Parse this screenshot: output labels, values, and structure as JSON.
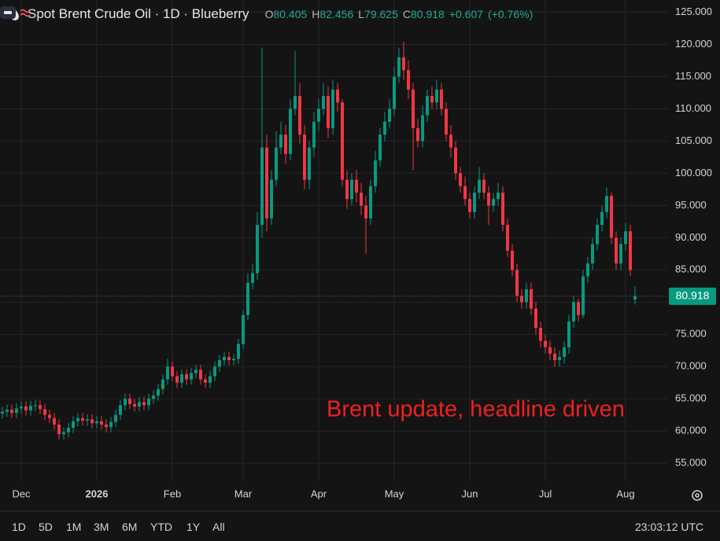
{
  "header": {
    "title": "Spot Brent Crude Oil · 1D · Blueberry",
    "ohlc_labels": [
      "O",
      "H",
      "L",
      "C"
    ],
    "change": {
      "value": 0.607,
      "label": "+0.607"
    },
    "change_pct": {
      "value": 0.76,
      "label": "(+0.76%)"
    }
  },
  "chart_data": {
    "type": "candlestick",
    "annotation": "Brent update, headline driven",
    "grid": true,
    "up_color": "#089981",
    "down_color": "#f23645",
    "categories": [
      null,
      null,
      null,
      null,
      "Dec",
      null,
      null,
      null,
      null,
      null,
      null,
      null,
      null,
      null,
      null,
      null,
      null,
      null,
      null,
      null,
      "2026",
      null,
      null,
      null,
      null,
      null,
      null,
      null,
      null,
      null,
      null,
      null,
      null,
      null,
      null,
      null,
      "Feb",
      null,
      null,
      null,
      null,
      null,
      null,
      null,
      null,
      null,
      null,
      null,
      null,
      null,
      null,
      "Mar",
      null,
      null,
      null,
      null,
      null,
      null,
      null,
      null,
      null,
      null,
      null,
      null,
      null,
      null,
      null,
      "Apr",
      null,
      null,
      null,
      null,
      null,
      null,
      null,
      null,
      null,
      null,
      null,
      null,
      null,
      null,
      null,
      "May",
      null,
      null,
      null,
      null,
      null,
      null,
      null,
      null,
      null,
      null,
      null,
      null,
      null,
      null,
      null,
      "Jun",
      null,
      null,
      null,
      null,
      null,
      null,
      null,
      null,
      null,
      null,
      null,
      null,
      null,
      null,
      null,
      "Jul",
      null,
      null,
      null,
      null,
      null,
      null,
      null,
      null,
      null,
      null,
      null,
      null,
      null,
      null,
      null,
      null,
      "Aug",
      null,
      null
    ],
    "open": [
      62.7,
      63.0,
      63.3,
      62.8,
      63.5,
      63.8,
      63.2,
      63.9,
      64.0,
      63.4,
      62.5,
      62.0,
      61.0,
      59.5,
      59.8,
      60.5,
      61.5,
      62.0,
      61.6,
      61.8,
      61.2,
      61.5,
      61.0,
      60.6,
      61.4,
      62.5,
      64.0,
      65.0,
      64.2,
      63.8,
      64.5,
      64.0,
      65.0,
      65.5,
      66.5,
      68.0,
      70.0,
      68.5,
      67.5,
      68.8,
      68.0,
      69.0,
      69.5,
      68.0,
      67.5,
      68.5,
      70.0,
      71.0,
      71.5,
      71.0,
      71.2,
      73.5,
      78.0,
      83.0,
      84.5,
      92.0,
      104.0,
      93.0,
      99.0,
      104.0,
      106,
      103,
      110,
      112,
      106,
      99,
      104,
      108,
      110,
      112,
      107,
      113,
      111,
      99,
      96,
      99,
      97,
      95,
      93,
      98,
      102,
      106,
      108,
      110,
      115,
      118,
      116,
      113,
      107,
      105,
      109,
      112,
      111,
      113,
      110,
      106,
      104,
      100,
      98,
      96,
      94,
      97,
      99,
      97,
      95,
      96,
      97,
      92,
      88,
      85,
      81,
      80,
      82,
      79,
      76,
      74,
      73,
      72,
      71,
      71.5,
      73,
      77,
      80,
      78,
      84,
      86,
      89,
      92,
      94,
      96.5,
      90,
      86,
      89,
      91,
      80.405
    ],
    "high": [
      63.8,
      64.1,
      64.1,
      64.3,
      64.6,
      64.6,
      64.7,
      64.8,
      64.8,
      64.2,
      63.3,
      62.8,
      61.8,
      60.6,
      61.3,
      62.3,
      62.8,
      62.8,
      62.6,
      62.6,
      62.3,
      62.3,
      61.8,
      62.2,
      63.3,
      64.8,
      65.8,
      65.8,
      65.0,
      65.3,
      65.3,
      65.8,
      66.3,
      67.3,
      68.8,
      71.2,
      70.8,
      69.3,
      69.6,
      69.6,
      69.8,
      70.3,
      70.3,
      68.8,
      69.3,
      70.8,
      71.8,
      72.3,
      72.3,
      72.0,
      74.3,
      78.8,
      84.5,
      86.0,
      94.0,
      119.5,
      106.0,
      100.5,
      106.5,
      108.0,
      107.5,
      111.5,
      119.0,
      114.0,
      107.5,
      105.0,
      109.5,
      111.5,
      114.0,
      113.5,
      114.5,
      114.0,
      111.5,
      100.5,
      100.0,
      100.5,
      98.5,
      96.5,
      99.0,
      103.5,
      107.0,
      109.5,
      111.5,
      116.5,
      119.5,
      120.4,
      117.5,
      114.0,
      108.5,
      110.5,
      113.0,
      113.5,
      114.5,
      114.0,
      111.0,
      107.5,
      105.0,
      101.0,
      99.5,
      97.0,
      98.0,
      101.0,
      100.0,
      98.0,
      97.0,
      98.5,
      98.0,
      93.0,
      89.0,
      86.0,
      82.0,
      83.0,
      83.0,
      80.0,
      77.0,
      75.0,
      74.0,
      73.0,
      72.5,
      74.0,
      78.0,
      81.0,
      80.5,
      85.0,
      87.0,
      90.0,
      93.0,
      95.0,
      97.8,
      97.0,
      91.0,
      90.0,
      92.3,
      92.0,
      82.456
    ],
    "low": [
      61.9,
      62.2,
      62.0,
      62.0,
      62.7,
      62.4,
      62.4,
      63.1,
      62.6,
      61.7,
      61.2,
      60.2,
      58.7,
      58.7,
      59.0,
      59.7,
      60.7,
      60.8,
      60.8,
      60.4,
      60.4,
      60.2,
      59.8,
      59.8,
      60.6,
      61.7,
      63.2,
      63.4,
      63.0,
      63.0,
      63.2,
      63.2,
      64.2,
      64.7,
      65.7,
      67.2,
      67.7,
      66.7,
      66.7,
      67.2,
      67.2,
      68.2,
      67.2,
      66.7,
      66.7,
      67.7,
      69.2,
      70.2,
      70.2,
      70.2,
      70.4,
      72.7,
      77.2,
      82.0,
      83.5,
      90.0,
      91.0,
      92.0,
      98.0,
      103.0,
      101.5,
      102.0,
      109.0,
      104.5,
      97.5,
      97.5,
      102.5,
      106.5,
      109.0,
      105.5,
      106.0,
      109.5,
      98.0,
      94.5,
      95.0,
      95.5,
      93.5,
      87.5,
      92.0,
      97.0,
      101.0,
      105.0,
      107.0,
      109.0,
      114.0,
      114.5,
      111.5,
      100.5,
      104.0,
      104.0,
      108.0,
      110.0,
      110.0,
      109.0,
      105.0,
      102.5,
      99.0,
      97.0,
      95.0,
      93.0,
      93.0,
      96.0,
      96.0,
      92.0,
      94.0,
      95.0,
      91.0,
      87.0,
      84.0,
      80.0,
      79.0,
      79.0,
      78.0,
      75.0,
      73.0,
      72.0,
      71.0,
      70.0,
      70.0,
      70.5,
      72.0,
      76.0,
      77.0,
      77.5,
      83.0,
      85.0,
      88.0,
      91.0,
      93.0,
      89.0,
      85.0,
      85.0,
      88.0,
      84.0,
      79.625
    ],
    "close": [
      63.0,
      63.3,
      62.8,
      63.5,
      63.8,
      63.2,
      63.9,
      64.0,
      63.4,
      62.5,
      62.0,
      61.0,
      59.5,
      59.8,
      60.5,
      61.5,
      62.0,
      61.6,
      61.8,
      61.2,
      61.5,
      61.0,
      60.6,
      61.4,
      62.5,
      64.0,
      65.0,
      64.2,
      63.8,
      64.5,
      64.0,
      65.0,
      65.5,
      66.5,
      68.0,
      70.0,
      68.5,
      67.5,
      68.8,
      68.0,
      69.0,
      69.5,
      68.0,
      67.5,
      68.5,
      70.0,
      71.0,
      71.5,
      71.0,
      71.2,
      73.5,
      78.0,
      83.0,
      84.5,
      92.0,
      104.0,
      93.0,
      99.0,
      104.0,
      106.0,
      103,
      110,
      112,
      106,
      99,
      104,
      108,
      110,
      112,
      107,
      113,
      111,
      99,
      96,
      99,
      97,
      95,
      93,
      98,
      102,
      106,
      108,
      110,
      115,
      118,
      116,
      113,
      107,
      105,
      109,
      112,
      111,
      113,
      110,
      106,
      104,
      100,
      98,
      96,
      94,
      97,
      99,
      97,
      95,
      96,
      97,
      92,
      88,
      85,
      81,
      80,
      82,
      79,
      76,
      74,
      73,
      72,
      71,
      71.5,
      73,
      77,
      80,
      78,
      84,
      86,
      89,
      92,
      94,
      96.5,
      90,
      86,
      89,
      91,
      85,
      80.918
    ],
    "ylim": [
      52.2,
      126.9
    ],
    "yticks": [
      {
        "value": 55,
        "label": "55.000"
      },
      {
        "value": 60,
        "label": "60.000"
      },
      {
        "value": 65,
        "label": "65.000"
      },
      {
        "value": 70,
        "label": "70.000"
      },
      {
        "value": 75,
        "label": "75.000"
      },
      {
        "value": 80,
        "label": "80.000"
      },
      {
        "value": 85,
        "label": "85.000"
      },
      {
        "value": 90,
        "label": "90.000"
      },
      {
        "value": 95,
        "label": "95.000"
      },
      {
        "value": 100,
        "label": "100.000"
      },
      {
        "value": 105,
        "label": "105.000"
      },
      {
        "value": 110,
        "label": "110.000"
      },
      {
        "value": 115,
        "label": "115.000"
      },
      {
        "value": 120,
        "label": "120.000"
      },
      {
        "value": 125,
        "label": "125.000"
      }
    ]
  },
  "toolbar": {
    "ranges": [
      "1D",
      "5D",
      "1M",
      "3M",
      "6M",
      "YTD",
      "1Y",
      "All"
    ],
    "time": "23:03:12 UTC"
  }
}
